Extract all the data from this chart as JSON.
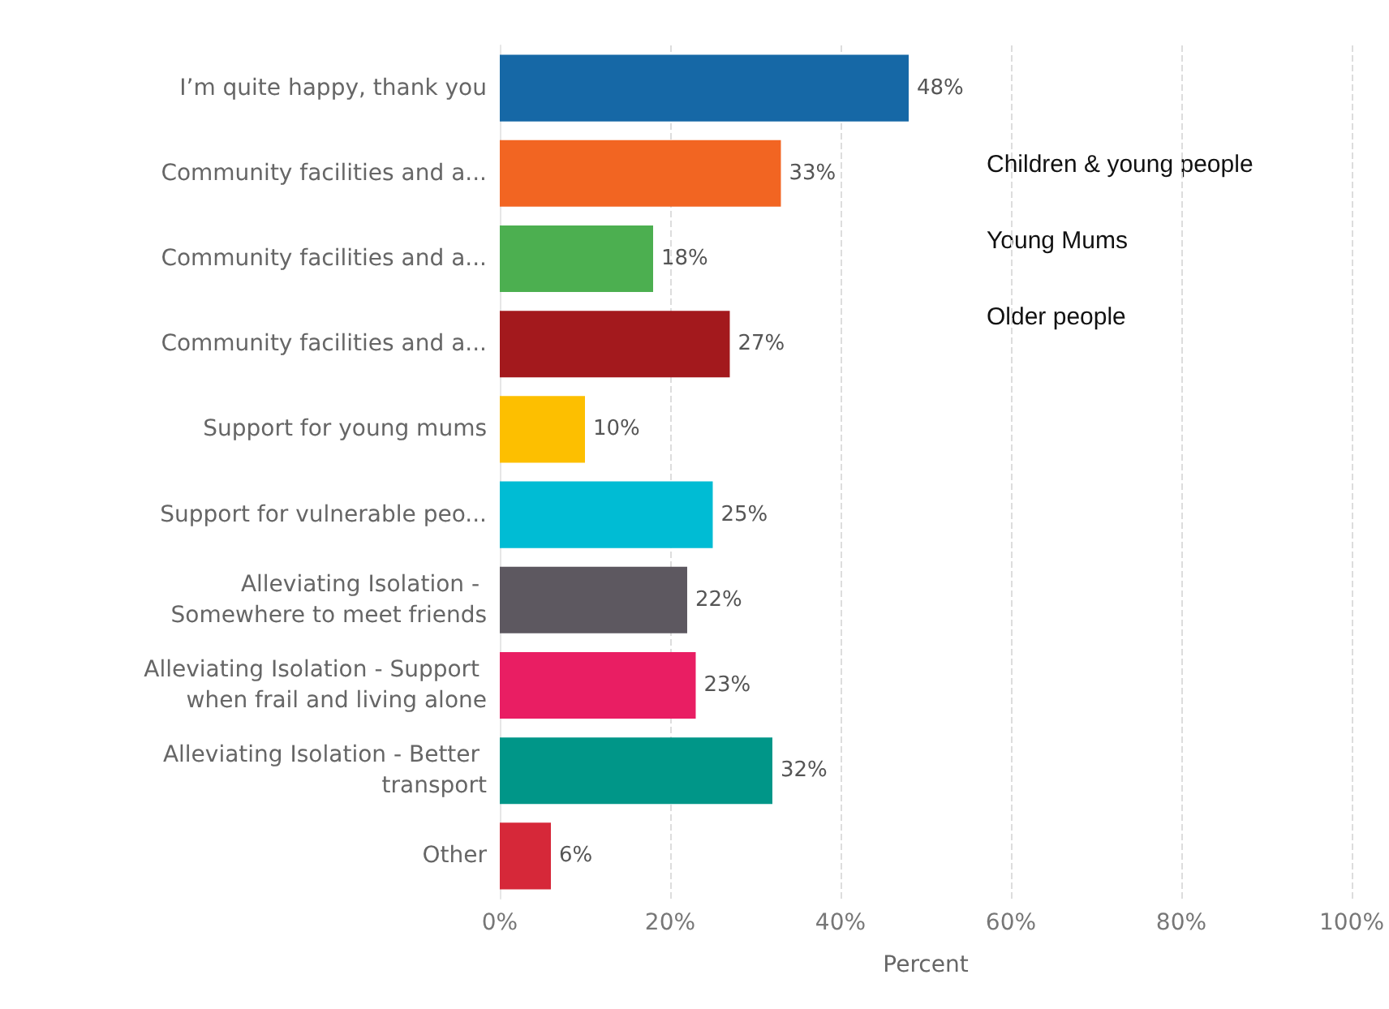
{
  "chart_data": {
    "type": "bar",
    "orientation": "horizontal",
    "xlabel": "Percent",
    "categories": [
      "I’m quite happy, thank you",
      "Community facilities and a...",
      "Community facilities and a...",
      "Community facilities and a...",
      "Support for young mums",
      "Support for vulnerable peo...",
      "Alleviating Isolation - Somewhere to meet friends",
      "Alleviating Isolation - Support when frail and living alone",
      "Alleviating Isolation - Better transport",
      "Other"
    ],
    "values": [
      48,
      33,
      18,
      27,
      10,
      25,
      22,
      23,
      32,
      6
    ],
    "colors": [
      "#1668a6",
      "#f26522",
      "#4caf50",
      "#a3191d",
      "#fdbf00",
      "#00bcd4",
      "#5d5860",
      "#e91e63",
      "#009688",
      "#d62839"
    ],
    "value_labels": [
      "48%",
      "33%",
      "18%",
      "27%",
      "10%",
      "25%",
      "22%",
      "23%",
      "32%",
      "6%"
    ],
    "xlim": [
      0,
      100
    ],
    "xticks": [
      {
        "value": 0,
        "label": "0%"
      },
      {
        "value": 20,
        "label": "20%"
      },
      {
        "value": 40,
        "label": "40%"
      },
      {
        "value": 60,
        "label": "60%"
      },
      {
        "value": 80,
        "label": "80%"
      },
      {
        "value": 100,
        "label": "100%"
      }
    ],
    "grid": "x",
    "annotations": [
      "Children & young people",
      "Young Mums",
      "Older people"
    ]
  }
}
